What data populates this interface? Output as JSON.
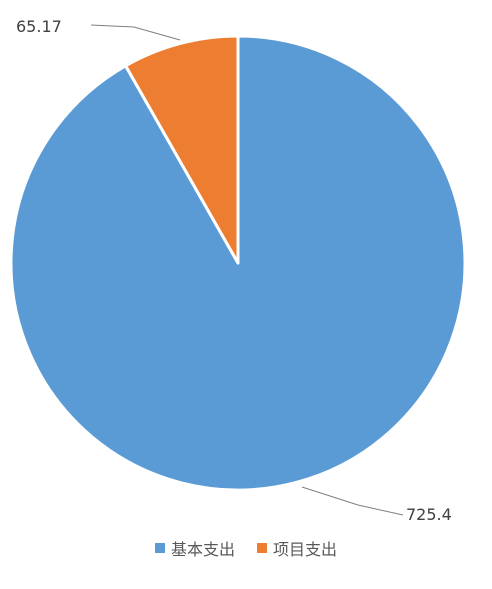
{
  "chart_data": {
    "type": "pie",
    "title": "",
    "categories": [
      "基本支出",
      "项目支出"
    ],
    "values": [
      725.4,
      65.17
    ],
    "data_labels": [
      "725.4",
      "65.17"
    ],
    "colors": [
      "#5B9BD5",
      "#ED7D31"
    ],
    "legend": {
      "placement": "bottom",
      "entries": [
        "基本支出",
        "项目支出"
      ]
    },
    "start_angle": "12 o'clock",
    "direction": "clockwise"
  }
}
